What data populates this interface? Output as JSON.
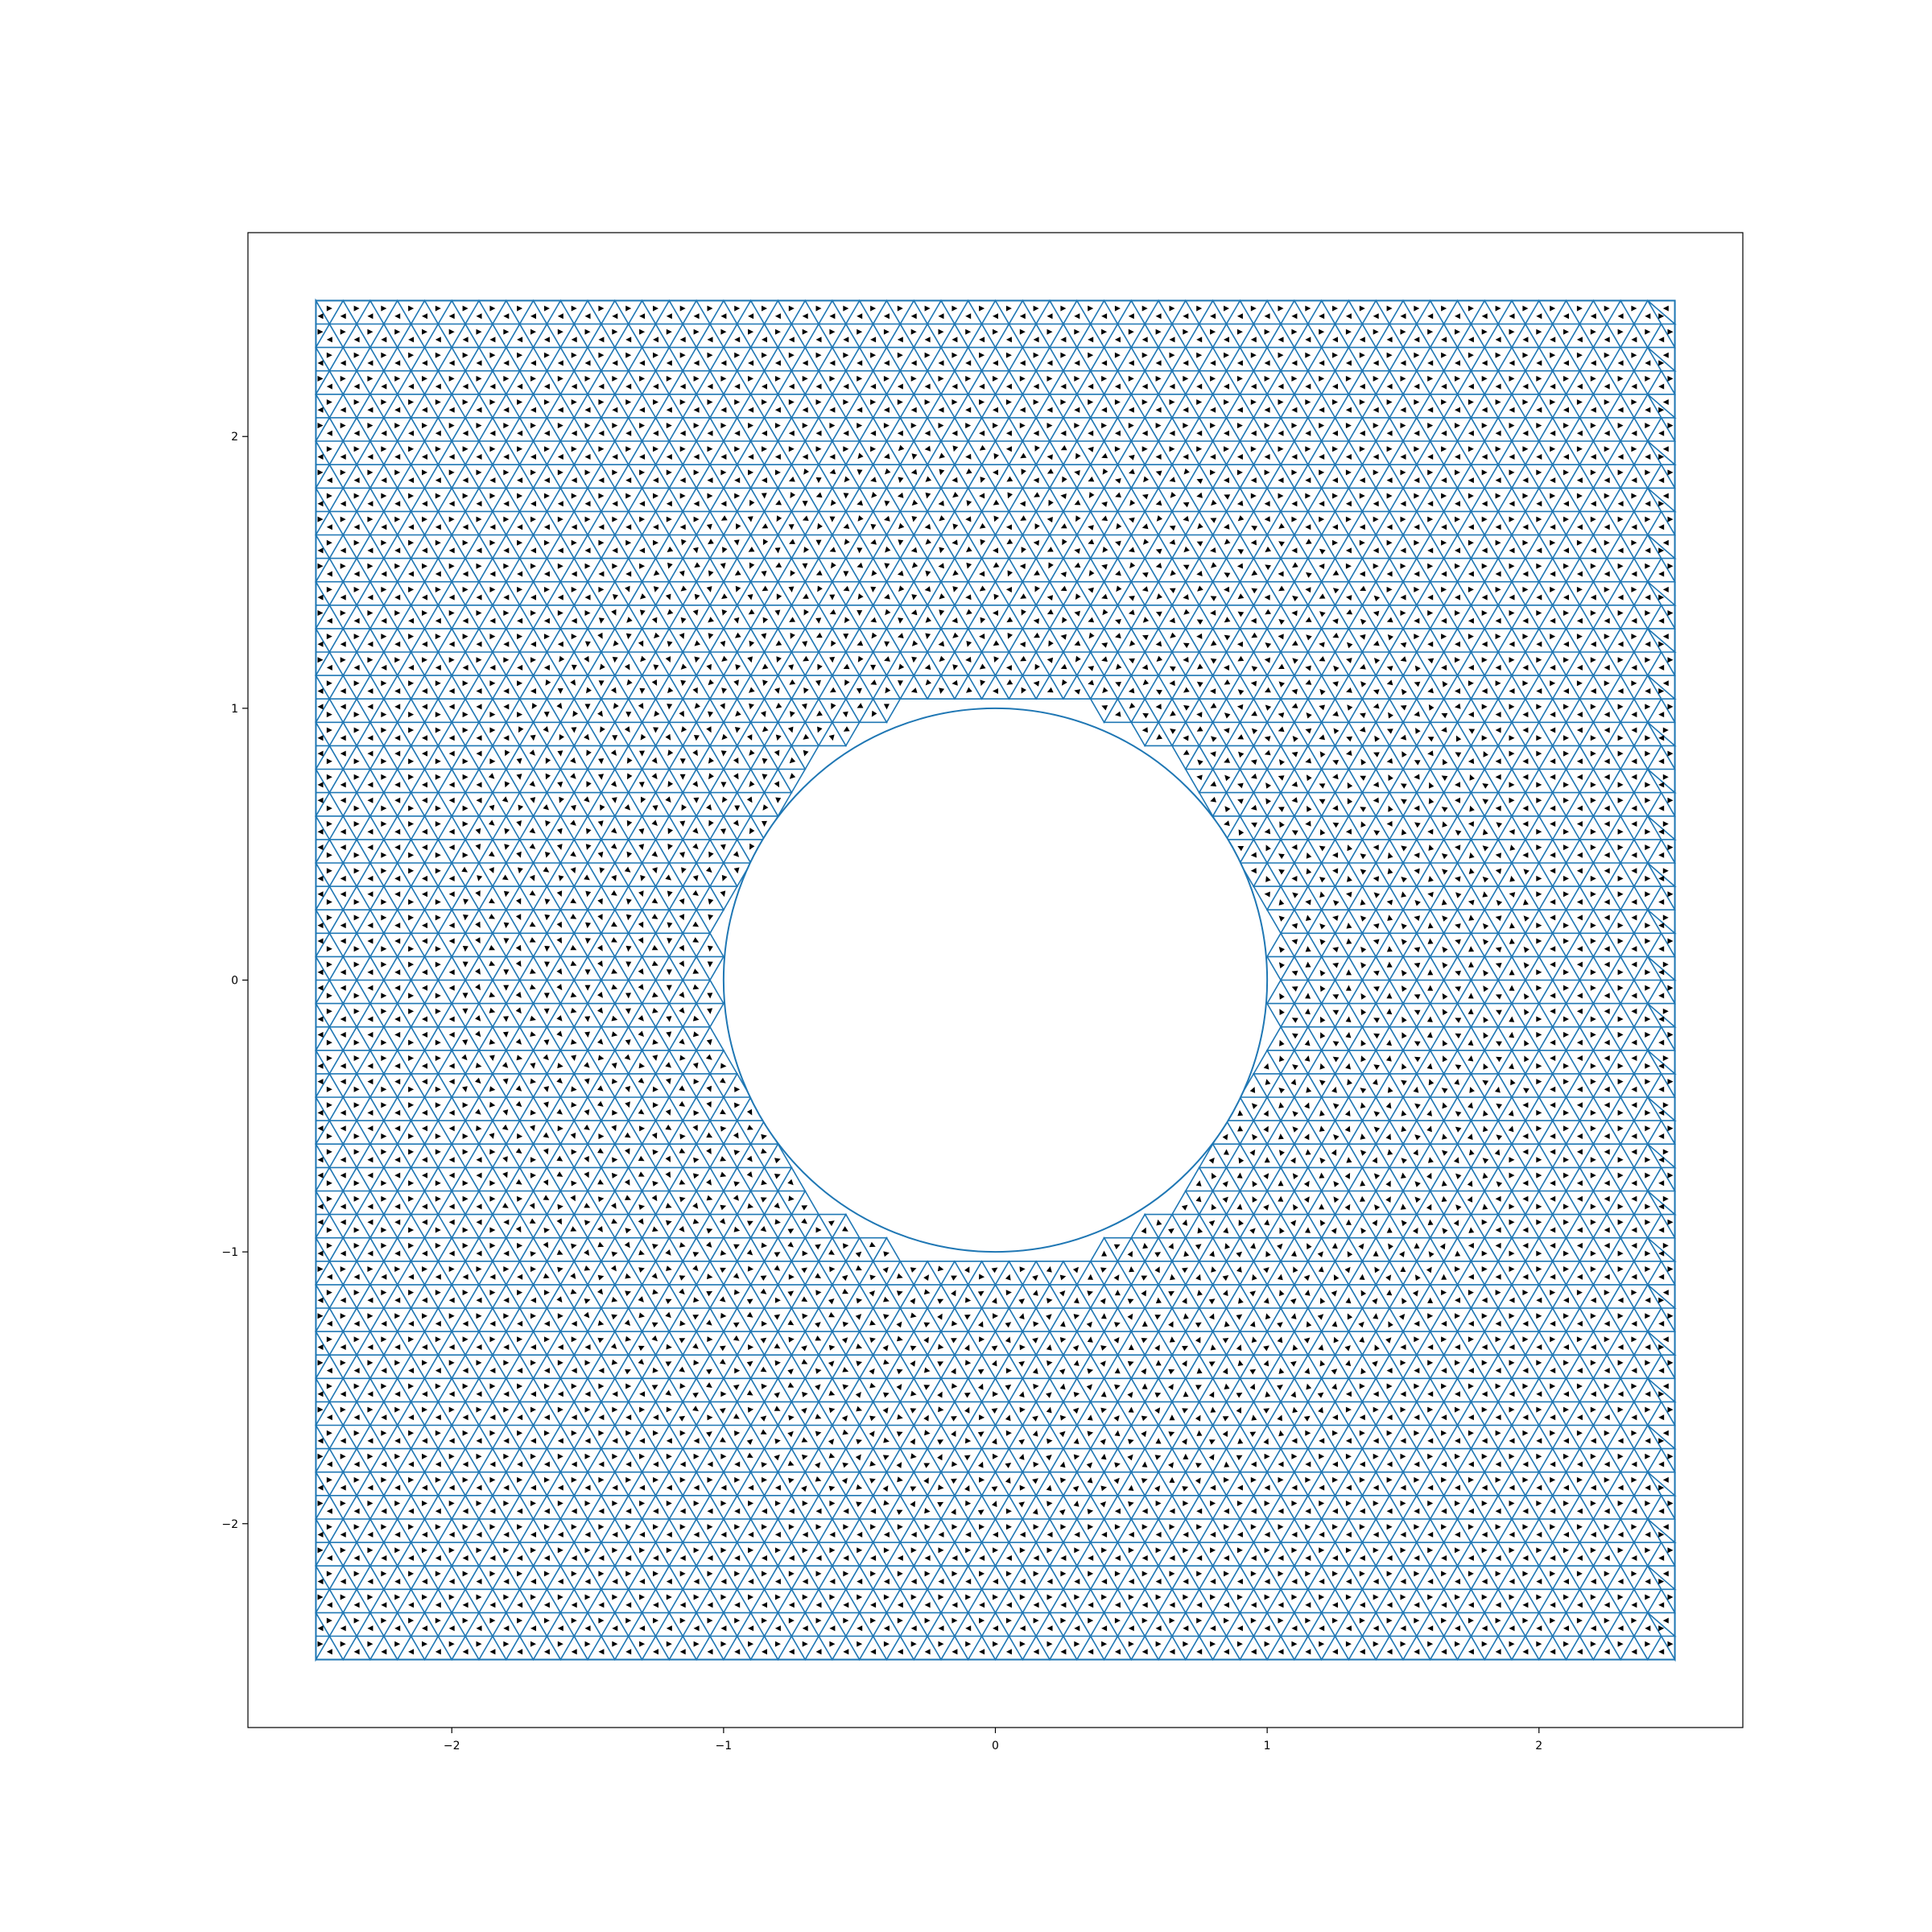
{
  "chart_data": {
    "type": "mesh",
    "description_of_marks": "triangular finite-element mesh on a square domain with a circular hole, each triangle containing a small black arrow (quiver) marker",
    "domain": {
      "square": {
        "xmin": -2.5,
        "xmax": 2.5,
        "ymin": -2.5,
        "ymax": 2.5
      },
      "hole": {
        "cx": 0,
        "cy": 0,
        "r": 1
      }
    },
    "mesh_spacing": 0.1,
    "xlim": [
      -2.75,
      2.75
    ],
    "ylim": [
      -2.75,
      2.75
    ],
    "x_ticks": [
      -2,
      -1,
      0,
      1,
      2
    ],
    "y_ticks": [
      -2,
      -1,
      0,
      1,
      2
    ],
    "x_tick_labels": [
      "−2",
      "−1",
      "0",
      "1",
      "2"
    ],
    "y_tick_labels": [
      "−2",
      "−1",
      "0",
      "1",
      "2"
    ],
    "title": "",
    "xlabel": "",
    "ylabel": "",
    "grid": false,
    "legend": "none",
    "colors": {
      "mesh": "#1f77b4",
      "arrows": "#000000",
      "axes": "#000000",
      "background": "#ffffff"
    }
  }
}
